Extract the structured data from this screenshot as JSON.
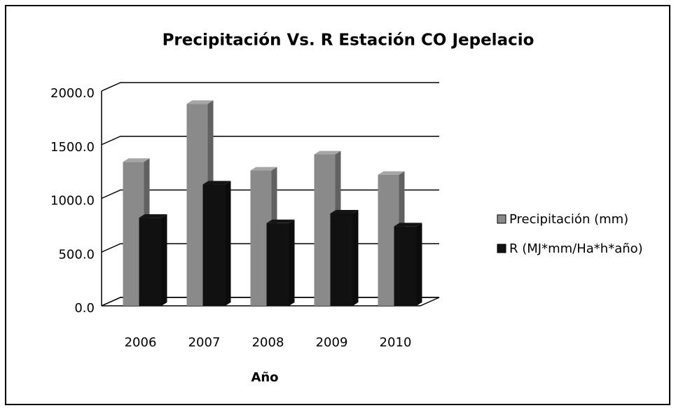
{
  "chart_data": {
    "type": "bar3d",
    "title": "Precipitación Vs. R Estación CO Jepelacio",
    "x_label": "Año",
    "categories": [
      "2006",
      "2007",
      "2008",
      "2009",
      "2010"
    ],
    "series": [
      {
        "name": "Precipitación (mm)",
        "color": "#8a8a8a",
        "values": [
          1340,
          1880,
          1260,
          1410,
          1220
        ]
      },
      {
        "name": "R (MJ*mm/Ha*h*año)",
        "color": "#111111",
        "values": [
          820,
          1130,
          770,
          860,
          740
        ]
      }
    ],
    "ylim": [
      0,
      2000
    ],
    "yticks": [
      {
        "value": 0,
        "label": "0.0"
      },
      {
        "value": 500,
        "label": "500.0"
      },
      {
        "value": 1000,
        "label": "1000.0"
      },
      {
        "value": 1500,
        "label": "1500.0"
      },
      {
        "value": 2000,
        "label": "2000.0"
      }
    ],
    "grid": true,
    "legend": "right"
  }
}
